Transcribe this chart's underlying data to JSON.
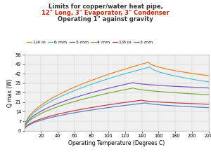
{
  "title_line1": "Limits for copper/water heat pipe,",
  "title_line2": "12\" Long, 3\" Evaporator, 3\" Condenser",
  "title_line3": "Operating 1\" against gravity",
  "xlabel": "Operating Temperature (Degrees C)",
  "ylabel": "Q max (W)",
  "xlim": [
    0,
    220
  ],
  "ylim": [
    0,
    55
  ],
  "xticks": [
    20,
    40,
    60,
    80,
    100,
    120,
    140,
    160,
    180,
    200,
    220
  ],
  "yticks": [
    0,
    7,
    14,
    21,
    28,
    35,
    42,
    49,
    56
  ],
  "series": [
    {
      "label": "1/4 in",
      "color": "#E8862B",
      "peak_x": 148,
      "peak_y": 50.5,
      "start_y": 1.5,
      "end_y": 40.5,
      "rise_exp": 0.52,
      "fall_exp": 0.58
    },
    {
      "label": "6 mm",
      "color": "#5AC0CE",
      "peak_x": 150,
      "peak_y": 47.0,
      "start_y": 1.2,
      "end_y": 36.0,
      "rise_exp": 0.52,
      "fall_exp": 0.58
    },
    {
      "label": "5 mm",
      "color": "#7B5DAF",
      "peak_x": 130,
      "peak_y": 35.5,
      "start_y": 0.8,
      "end_y": 31.5,
      "rise_exp": 0.5,
      "fall_exp": 0.6
    },
    {
      "label": "4 mm",
      "color": "#7BAF3A",
      "peak_x": 130,
      "peak_y": 31.5,
      "start_y": 0.5,
      "end_y": 26.5,
      "rise_exp": 0.5,
      "fall_exp": 0.6
    },
    {
      "label": "1/8 in",
      "color": "#C44040",
      "peak_x": 140,
      "peak_y": 22.5,
      "start_y": 0.3,
      "end_y": 19.5,
      "rise_exp": 0.5,
      "fall_exp": 0.6
    },
    {
      "label": "3 mm",
      "color": "#5B80C8",
      "peak_x": 145,
      "peak_y": 20.5,
      "start_y": 0.2,
      "end_y": 17.0,
      "rise_exp": 0.5,
      "fall_exp": 0.6
    }
  ],
  "background_color": "#FFFFFF",
  "plot_bg_color": "#F0F0F0",
  "grid_color": "#CCCCCC",
  "title_color1": "#333333",
  "title_color2": "#CC2200",
  "title_fontsize": 6.0,
  "legend_fontsize": 4.5,
  "axis_label_fontsize": 5.5,
  "tick_fontsize": 4.8
}
